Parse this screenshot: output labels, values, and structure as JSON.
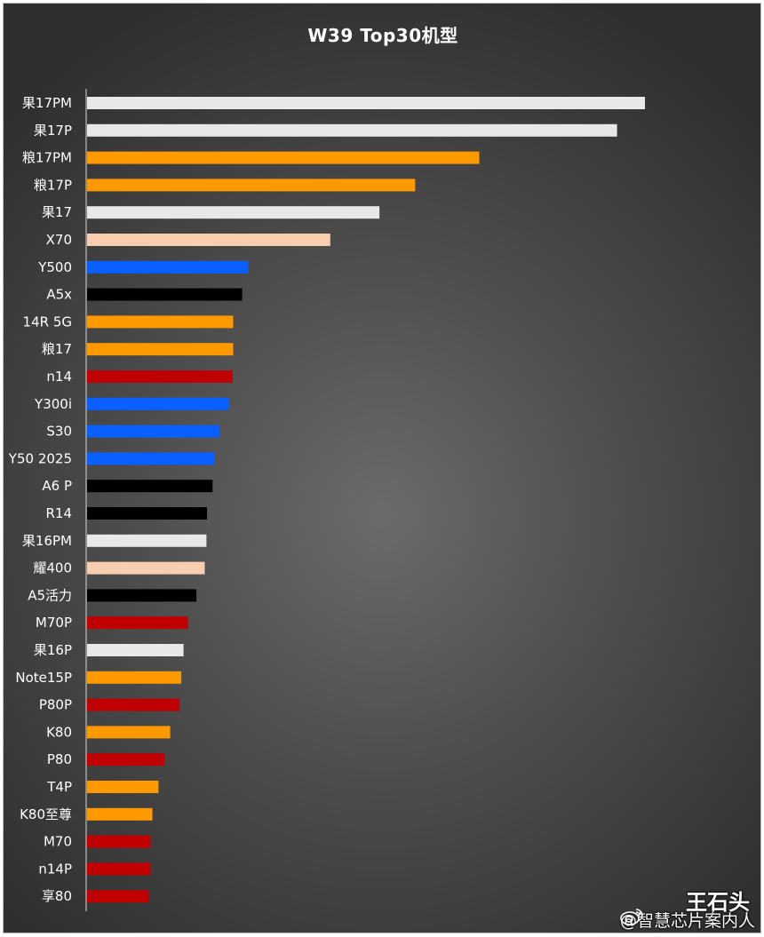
{
  "chart_data": {
    "type": "bar",
    "orientation": "horizontal",
    "title": "W39 Top30机型",
    "xlabel": "",
    "ylabel": "",
    "grid": false,
    "xlim": [
      0,
      100
    ],
    "categories": [
      "果17PM",
      "果17P",
      "粮17PM",
      "粮17P",
      "果17",
      "X70",
      "Y500",
      "A5x",
      "14R 5G",
      "粮17",
      "n14",
      "Y300i",
      "S30",
      "Y50 2025",
      "A6 P",
      "R14",
      "果16PM",
      "耀400",
      "A5活力",
      "M70P",
      "果16P",
      "Note15P",
      "P80P",
      "K80",
      "P80",
      "T4P",
      "K80至尊",
      "M70",
      "n14P",
      "享80"
    ],
    "values": [
      100,
      95,
      70.3,
      58.8,
      52.4,
      43.6,
      28.9,
      27.8,
      26.2,
      26.2,
      26.1,
      25.5,
      23.7,
      22.9,
      22.5,
      21.5,
      21.4,
      21.1,
      19.6,
      18.1,
      17.3,
      16.9,
      16.6,
      14.9,
      13.9,
      12.8,
      11.7,
      11.3,
      11.3,
      11.0
    ],
    "colors": [
      "#e8e8e8",
      "#e8e8e8",
      "#ff9900",
      "#ff9900",
      "#e8e8e8",
      "#f8cdb0",
      "#0a5fff",
      "#000000",
      "#ff9900",
      "#ff9900",
      "#c00000",
      "#0a5fff",
      "#0a5fff",
      "#0a5fff",
      "#000000",
      "#000000",
      "#e8e8e8",
      "#f8cdb0",
      "#000000",
      "#c00000",
      "#e8e8e8",
      "#ff9900",
      "#c00000",
      "#ff9900",
      "#c00000",
      "#ff9900",
      "#ff9900",
      "#c00000",
      "#c00000",
      "#c00000"
    ]
  },
  "watermark": {
    "handle": "@智慧芯片案内人",
    "name": "王石头",
    "icon": "weibo-icon"
  }
}
